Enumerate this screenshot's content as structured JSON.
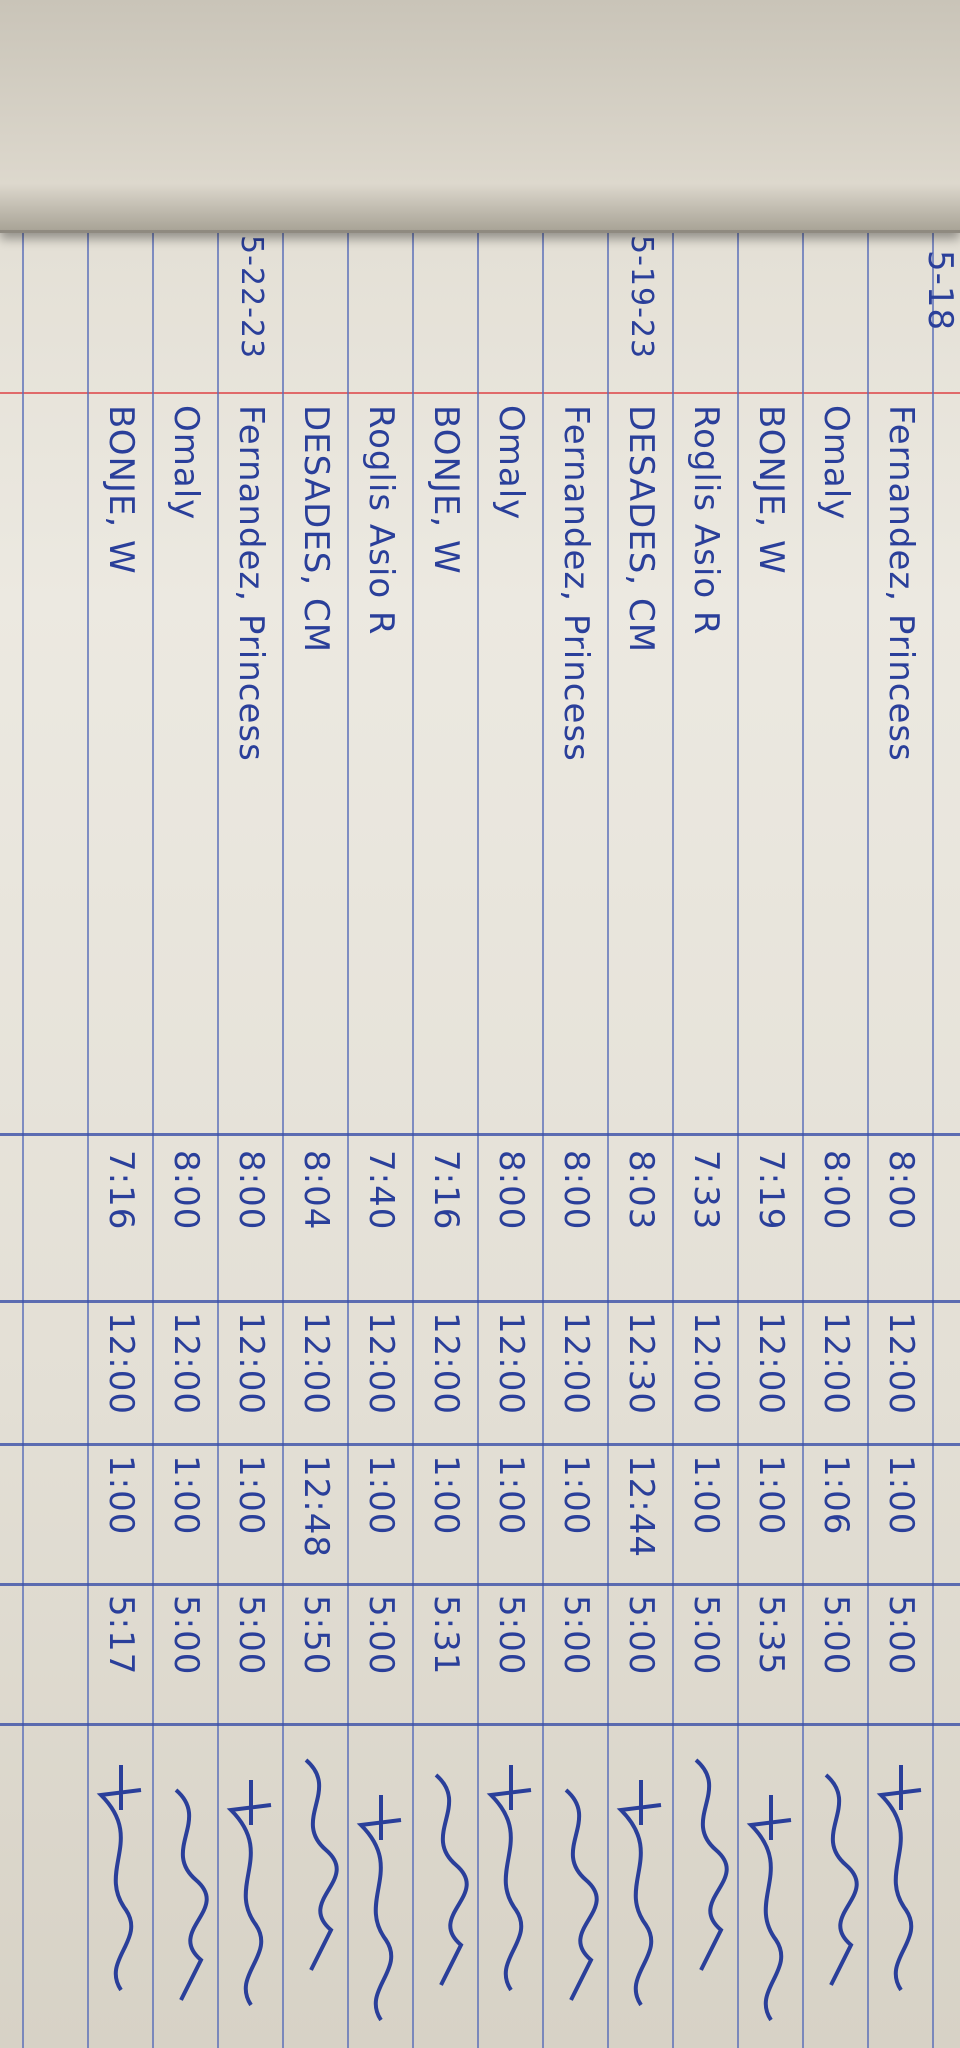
{
  "header": {
    "date_fragment": "5-18"
  },
  "colors": {
    "ink": "#2a3f9a",
    "rule": "#5b6fb8",
    "margin_line": "#e06a6a",
    "paper": "#ece9e1"
  },
  "rows": [
    {
      "date": "",
      "name": "Fernandez, Princess",
      "am_in": "8:00",
      "am_out": "12:00",
      "pm_in": "1:00",
      "pm_out": "5:00"
    },
    {
      "date": "",
      "name": "Omaly",
      "am_in": "8:00",
      "am_out": "12:00",
      "pm_in": "1:06",
      "pm_out": "5:00"
    },
    {
      "date": "",
      "name": "BONJE, W",
      "am_in": "7:19",
      "am_out": "12:00",
      "pm_in": "1:00",
      "pm_out": "5:35"
    },
    {
      "date": "",
      "name": "Roglis Asio R",
      "am_in": "7:33",
      "am_out": "12:00",
      "pm_in": "1:00",
      "pm_out": "5:00"
    },
    {
      "date": "5-19-23",
      "name": "DESADES, CM",
      "am_in": "8:03",
      "am_out": "12:30",
      "pm_in": "12:44",
      "pm_out": "5:00"
    },
    {
      "date": "",
      "name": "Fernandez, Princess",
      "am_in": "8:00",
      "am_out": "12:00",
      "pm_in": "1:00",
      "pm_out": "5:00"
    },
    {
      "date": "",
      "name": "Omaly",
      "am_in": "8:00",
      "am_out": "12:00",
      "pm_in": "1:00",
      "pm_out": "5:00"
    },
    {
      "date": "",
      "name": "BONJE, W",
      "am_in": "7:16",
      "am_out": "12:00",
      "pm_in": "1:00",
      "pm_out": "5:31"
    },
    {
      "date": "",
      "name": "Roglis Asio R",
      "am_in": "7:40",
      "am_out": "12:00",
      "pm_in": "1:00",
      "pm_out": "5:00"
    },
    {
      "date": "",
      "name": "DESADES, CM",
      "am_in": "8:04",
      "am_out": "12:00",
      "pm_in": "12:48",
      "pm_out": "5:50"
    },
    {
      "date": "5-22-23",
      "name": "Fernandez, Princess",
      "am_in": "8:00",
      "am_out": "12:00",
      "pm_in": "1:00",
      "pm_out": "5:00"
    },
    {
      "date": "",
      "name": "Omaly",
      "am_in": "8:00",
      "am_out": "12:00",
      "pm_in": "1:00",
      "pm_out": "5:00"
    },
    {
      "date": "",
      "name": "BONJE, W",
      "am_in": "7:16",
      "am_out": "12:00",
      "pm_in": "1:00",
      "pm_out": "5:17"
    }
  ]
}
